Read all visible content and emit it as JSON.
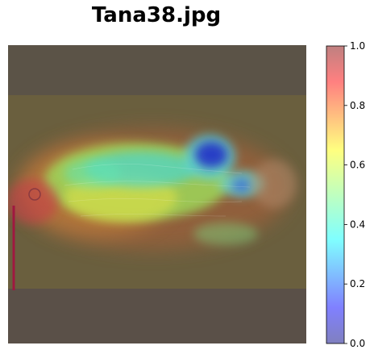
{
  "chart_data": {
    "type": "heatmap",
    "title": "Tana38.jpg",
    "xlabel": "",
    "ylabel": "",
    "colorbar": {
      "colormap": "jet",
      "alpha": 0.5,
      "range": [
        0.0,
        1.0
      ],
      "ticks": [
        0.0,
        0.2,
        0.4,
        0.6,
        0.8,
        1.0
      ],
      "tick_labels": [
        "0.0",
        "0.2",
        "0.4",
        "0.6",
        "0.8",
        "1.0"
      ]
    },
    "axes_visible": false,
    "image_subject": "fish",
    "hotspots": [
      {
        "region": "dorsal-fin",
        "level": 0.05
      },
      {
        "region": "caudal-peduncle",
        "level": 0.25
      },
      {
        "region": "body-upper",
        "level": 0.4
      },
      {
        "region": "body-center",
        "level": 0.55
      },
      {
        "region": "body-lower",
        "level": 0.65
      },
      {
        "region": "head",
        "level": 0.92
      },
      {
        "region": "background",
        "level": 0.0
      }
    ]
  }
}
